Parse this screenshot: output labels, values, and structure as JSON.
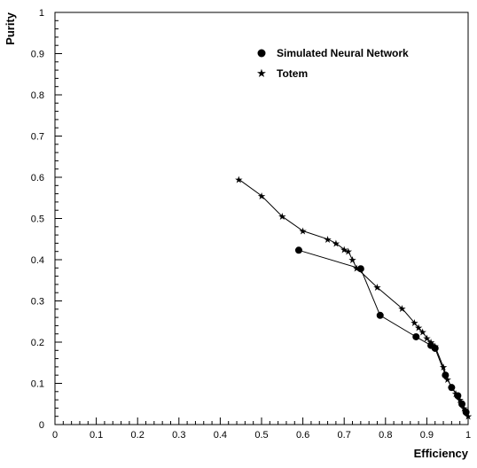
{
  "chart_data": {
    "type": "line",
    "xlabel": "Efficiency",
    "ylabel": "Purity",
    "xlim": [
      0,
      1
    ],
    "ylim": [
      0,
      1
    ],
    "xticks": [
      "0",
      "0.1",
      "0.2",
      "0.3",
      "0.4",
      "0.5",
      "0.6",
      "0.7",
      "0.8",
      "0.9",
      "1"
    ],
    "yticks": [
      "0",
      "0.1",
      "0.2",
      "0.3",
      "0.4",
      "0.5",
      "0.6",
      "0.7",
      "0.8",
      "0.9",
      "1"
    ],
    "grid": false,
    "legend_position": "top-right",
    "series": [
      {
        "name": "Simulated Neural Network",
        "marker": "circle",
        "x": [
          0.59,
          0.74,
          0.787,
          0.874,
          0.91,
          0.92,
          0.945,
          0.96,
          0.975,
          0.985,
          0.995
        ],
        "y": [
          0.423,
          0.378,
          0.265,
          0.213,
          0.192,
          0.185,
          0.12,
          0.09,
          0.07,
          0.05,
          0.03
        ]
      },
      {
        "name": "Totem",
        "marker": "star",
        "x": [
          0.445,
          0.5,
          0.55,
          0.6,
          0.66,
          0.68,
          0.7,
          0.71,
          0.72,
          0.73,
          0.78,
          0.84,
          0.87,
          0.88,
          0.89,
          0.9,
          0.91,
          0.92,
          0.94,
          0.95,
          0.96,
          0.97,
          0.98,
          0.99,
          1.0
        ],
        "y": [
          0.595,
          0.555,
          0.505,
          0.47,
          0.45,
          0.44,
          0.425,
          0.42,
          0.4,
          0.38,
          0.333,
          0.282,
          0.247,
          0.235,
          0.225,
          0.21,
          0.2,
          0.19,
          0.14,
          0.11,
          0.09,
          0.075,
          0.06,
          0.04,
          0.02
        ]
      }
    ]
  }
}
